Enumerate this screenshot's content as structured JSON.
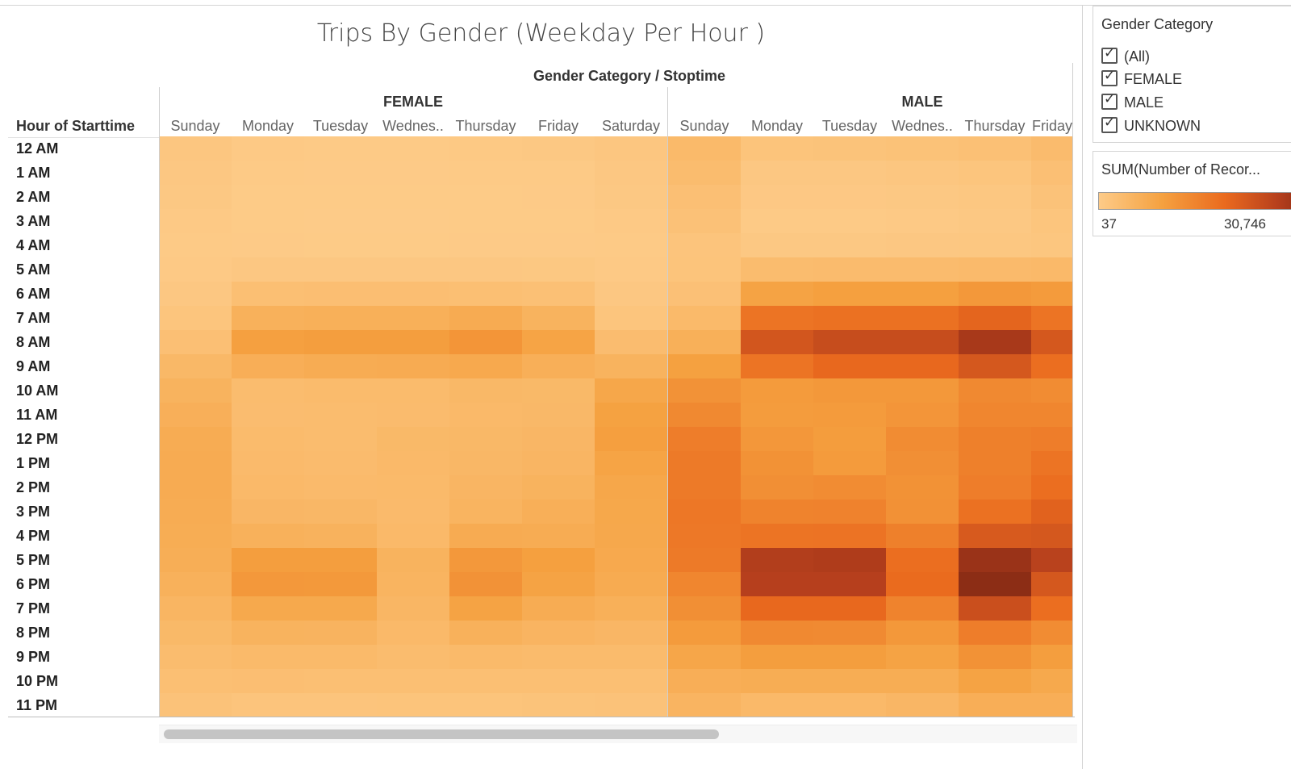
{
  "chart_data": {
    "type": "heatmap",
    "title": "Trips By Gender (Weekday Per Hour )",
    "column_header": "Gender Category / Stoptime",
    "row_axis_title": "Hour of Starttime",
    "groups": [
      {
        "name": "FEMALE",
        "days": [
          "Sunday",
          "Monday",
          "Tuesday",
          "Wednes..",
          "Thursday",
          "Friday",
          "Saturday"
        ]
      },
      {
        "name": "MALE",
        "days": [
          "Sunday",
          "Monday",
          "Tuesday",
          "Wednes..",
          "Thursday",
          "Friday"
        ]
      }
    ],
    "hours": [
      "12 AM",
      "1 AM",
      "2 AM",
      "3 AM",
      "4 AM",
      "5 AM",
      "6 AM",
      "7 AM",
      "8 AM",
      "9 AM",
      "10 AM",
      "11 AM",
      "12 PM",
      "1 PM",
      "2 PM",
      "3 PM",
      "4 PM",
      "5 PM",
      "6 PM",
      "7 PM",
      "8 PM",
      "9 PM",
      "10 PM",
      "11 PM"
    ],
    "color_scale": {
      "min": 37,
      "max": 30746,
      "min_color": "#fdcb88",
      "max_color": "#8c2d15"
    },
    "values": {
      "FEMALE": [
        [
          900,
          400,
          300,
          300,
          450,
          550,
          900
        ],
        [
          700,
          200,
          150,
          150,
          200,
          250,
          700
        ],
        [
          550,
          120,
          100,
          100,
          120,
          150,
          550
        ],
        [
          400,
          100,
          80,
          80,
          100,
          120,
          400
        ],
        [
          300,
          150,
          120,
          120,
          140,
          160,
          300
        ],
        [
          350,
          700,
          700,
          700,
          700,
          650,
          350
        ],
        [
          700,
          2300,
          2400,
          2400,
          2300,
          2100,
          700
        ],
        [
          1200,
          4800,
          5000,
          5000,
          5800,
          4500,
          1200
        ],
        [
          2200,
          7800,
          8200,
          8200,
          9800,
          7200,
          2700
        ],
        [
          3600,
          5300,
          5700,
          5800,
          6200,
          5200,
          4500
        ],
        [
          4500,
          2800,
          3000,
          3000,
          3600,
          3400,
          6600
        ],
        [
          5100,
          2700,
          2800,
          2900,
          3300,
          3500,
          7600
        ],
        [
          5700,
          3000,
          2800,
          3400,
          3600,
          3800,
          8000
        ],
        [
          5800,
          3100,
          2900,
          3300,
          3700,
          4000,
          7200
        ],
        [
          5800,
          3300,
          3100,
          3200,
          4000,
          4500,
          6700
        ],
        [
          5700,
          3800,
          3700,
          3100,
          4300,
          5200,
          6500
        ],
        [
          5600,
          4800,
          4600,
          3300,
          5800,
          5700,
          6400
        ],
        [
          5400,
          8200,
          8200,
          4500,
          9200,
          7900,
          6200
        ],
        [
          4800,
          9200,
          9000,
          4300,
          10200,
          7300,
          5900
        ],
        [
          4100,
          6300,
          6300,
          3900,
          7300,
          5700,
          5000
        ],
        [
          3400,
          4500,
          4400,
          3300,
          4800,
          4200,
          3800
        ],
        [
          2800,
          3200,
          3200,
          2800,
          3200,
          3000,
          3000
        ],
        [
          2300,
          2400,
          2300,
          2300,
          2300,
          2300,
          2300
        ],
        [
          1600,
          1300,
          1300,
          1400,
          1400,
          1500,
          1600
        ]
      ],
      "MALE": [
        [
          3200,
          1400,
          1500,
          1700,
          2100,
          2900
        ],
        [
          2800,
          700,
          700,
          900,
          1200,
          2200
        ],
        [
          2200,
          500,
          500,
          600,
          800,
          1600
        ],
        [
          1800,
          300,
          300,
          400,
          600,
          1200
        ],
        [
          1300,
          600,
          600,
          700,
          800,
          1000
        ],
        [
          1400,
          2800,
          2900,
          2900,
          3100,
          3300
        ],
        [
          2000,
          7300,
          7900,
          7900,
          9300,
          8800
        ],
        [
          3200,
          15200,
          15800,
          15800,
          17800,
          15300
        ],
        [
          5000,
          20500,
          22300,
          22300,
          26800,
          20300
        ],
        [
          7700,
          15300,
          17300,
          17300,
          20300,
          16300
        ],
        [
          10200,
          8700,
          9300,
          9300,
          11800,
          11300
        ],
        [
          11800,
          8500,
          8700,
          9700,
          12300,
          12300
        ],
        [
          13700,
          9400,
          8400,
          11300,
          13300,
          13800
        ],
        [
          14200,
          10300,
          8800,
          10800,
          13300,
          15300
        ],
        [
          14300,
          10800,
          11300,
          10300,
          13800,
          16300
        ],
        [
          14700,
          12800,
          12900,
          10400,
          15800,
          18300
        ],
        [
          14500,
          15300,
          15400,
          13300,
          19800,
          20300
        ],
        [
          14200,
          25300,
          25800,
          16300,
          28800,
          24300
        ],
        [
          12300,
          24800,
          24800,
          16800,
          30746,
          20300
        ],
        [
          10800,
          17300,
          17300,
          12800,
          21800,
          16300
        ],
        [
          8800,
          11800,
          11600,
          9300,
          13800,
          11300
        ],
        [
          6800,
          8300,
          8300,
          7300,
          10300,
          8300
        ],
        [
          5300,
          5600,
          5600,
          5600,
          7300,
          6300
        ],
        [
          4200,
          3300,
          3300,
          3800,
          5300,
          5300
        ]
      ]
    }
  },
  "filter": {
    "title": "Gender Category",
    "items": [
      "(All)",
      "FEMALE",
      "MALE",
      "UNKNOWN"
    ],
    "check_glyph": "✓"
  },
  "color_legend": {
    "title": "SUM(Number of Recor...",
    "min_label": "37",
    "max_label": "30,746"
  }
}
